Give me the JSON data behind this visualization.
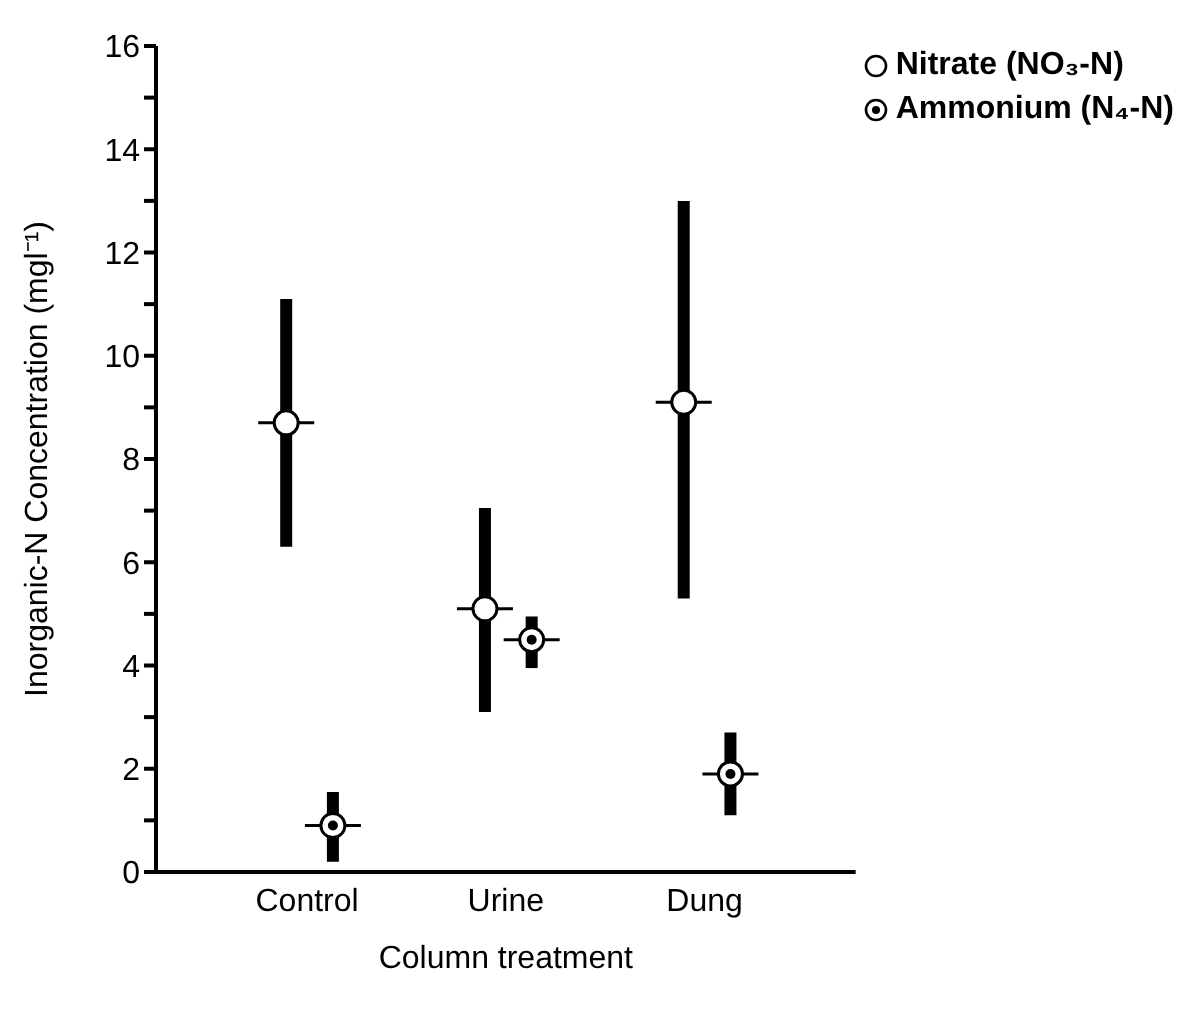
{
  "chart_data": {
    "type": "scatter",
    "xlabel": "Column treatment",
    "ylabel": "Inorganic-N Concentration (mgl⁻¹)",
    "categories": [
      "Control",
      "Urine",
      "Dung"
    ],
    "series": [
      {
        "name": "Nitrate (NO₃-N)",
        "color": "#000000",
        "values": [
          8.7,
          5.1,
          9.1
        ],
        "errors": [
          [
            6.3,
            11.1
          ],
          [
            3.1,
            7.05
          ],
          [
            5.3,
            13.0
          ]
        ]
      },
      {
        "name": "Ammonium (N₄-N)",
        "color": "#000000",
        "values": [
          0.9,
          4.5,
          1.9
        ],
        "errors": [
          [
            0.2,
            1.55
          ],
          [
            3.95,
            4.95
          ],
          [
            1.1,
            2.7
          ]
        ]
      }
    ],
    "ylim": [
      0,
      16
    ],
    "yticks": [
      0,
      {
        "value": 1,
        "label": null
      },
      2,
      {
        "value": 3,
        "label": null
      },
      4,
      {
        "value": 5,
        "label": null
      },
      6,
      {
        "value": 7,
        "label": null
      },
      8,
      {
        "value": 9,
        "label": null
      },
      10,
      {
        "value": 11,
        "label": null
      },
      12,
      {
        "value": 13,
        "label": null
      },
      14,
      {
        "value": 15,
        "label": null
      },
      16
    ],
    "grid": false,
    "legend": "top right",
    "marker": "circle"
  }
}
